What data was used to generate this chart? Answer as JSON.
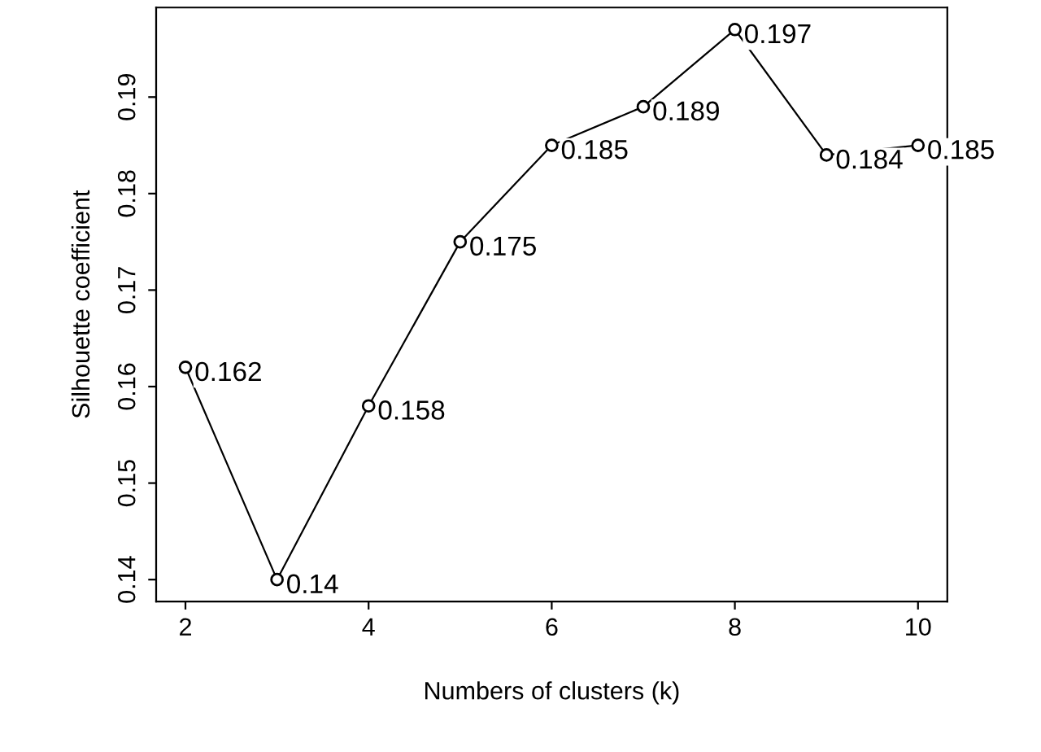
{
  "chart_data": {
    "type": "line",
    "xlabel": "Numbers of clusters (k)",
    "ylabel": "Silhouette coefficient",
    "x": [
      2,
      3,
      4,
      5,
      6,
      7,
      8,
      9,
      10
    ],
    "series": [
      {
        "color": "#000000",
        "values": [
          0.162,
          0.14,
          0.158,
          0.175,
          0.185,
          0.189,
          0.197,
          0.184,
          0.185
        ]
      }
    ],
    "xlim": [
      1.68,
      10.32
    ],
    "xticks": [
      2,
      4,
      6,
      8,
      10
    ],
    "ylim": [
      0.13772,
      0.19928
    ],
    "yticks": [
      0.14,
      0.15,
      0.16,
      0.17,
      0.18,
      0.19
    ],
    "marker": "circle",
    "line_style": "solid",
    "data_labels": true,
    "grid": false,
    "legend": false
  }
}
